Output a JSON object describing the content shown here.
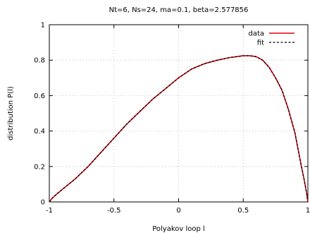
{
  "chart_data": {
    "type": "line",
    "title": "Nt=6, Ns=24, ma=0.1, beta=2.577856",
    "xlabel": "Polyakov loop l",
    "ylabel": "distribution P(l)",
    "xlim": [
      -1,
      1
    ],
    "ylim": [
      0,
      1
    ],
    "xticks": [
      "-1",
      "-0.5",
      "0",
      "0.5",
      "1"
    ],
    "yticks": [
      "0",
      "0.2",
      "0.4",
      "0.6",
      "0.8",
      "1"
    ],
    "grid": true,
    "legend_position": "top-right",
    "series": [
      {
        "name": "data",
        "style": "solid",
        "color": "#e8000b",
        "x": [
          -1.0,
          -0.98,
          -0.95,
          -0.9,
          -0.8,
          -0.7,
          -0.6,
          -0.5,
          -0.4,
          -0.3,
          -0.2,
          -0.1,
          0.0,
          0.1,
          0.2,
          0.3,
          0.4,
          0.45,
          0.5,
          0.55,
          0.6,
          0.65,
          0.7,
          0.75,
          0.8,
          0.85,
          0.9,
          0.95,
          0.97,
          0.99,
          1.0
        ],
        "y": [
          0.0,
          0.02,
          0.04,
          0.07,
          0.13,
          0.2,
          0.28,
          0.36,
          0.44,
          0.51,
          0.58,
          0.64,
          0.7,
          0.75,
          0.78,
          0.8,
          0.815,
          0.82,
          0.825,
          0.825,
          0.82,
          0.8,
          0.76,
          0.7,
          0.63,
          0.52,
          0.39,
          0.2,
          0.13,
          0.05,
          0.0
        ]
      },
      {
        "name": "fit",
        "style": "dashed",
        "color": "#000000",
        "x": [
          -1.0,
          -0.98,
          -0.95,
          -0.9,
          -0.8,
          -0.7,
          -0.6,
          -0.5,
          -0.4,
          -0.3,
          -0.2,
          -0.1,
          0.0,
          0.1,
          0.2,
          0.3,
          0.4,
          0.45,
          0.5,
          0.55,
          0.6,
          0.65,
          0.7,
          0.75,
          0.8,
          0.85,
          0.9,
          0.95,
          0.97,
          0.99,
          1.0
        ],
        "y": [
          0.0,
          0.02,
          0.04,
          0.07,
          0.13,
          0.2,
          0.28,
          0.36,
          0.44,
          0.51,
          0.58,
          0.64,
          0.7,
          0.75,
          0.78,
          0.8,
          0.815,
          0.82,
          0.825,
          0.825,
          0.82,
          0.8,
          0.76,
          0.7,
          0.63,
          0.52,
          0.39,
          0.2,
          0.13,
          0.05,
          0.0
        ]
      }
    ]
  }
}
